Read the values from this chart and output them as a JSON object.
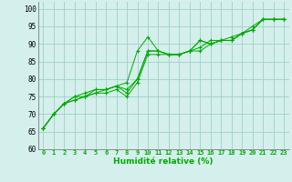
{
  "title": "",
  "xlabel": "Humidité relative (%)",
  "ylabel": "",
  "bg_color": "#d4efec",
  "grid_color": "#a0cfc8",
  "line_color": "#00aa00",
  "marker_color": "#00aa00",
  "xlim": [
    -0.5,
    23.5
  ],
  "ylim": [
    60,
    102
  ],
  "yticks": [
    60,
    65,
    70,
    75,
    80,
    85,
    90,
    95,
    100
  ],
  "xticks": [
    0,
    1,
    2,
    3,
    4,
    5,
    6,
    7,
    8,
    9,
    10,
    11,
    12,
    13,
    14,
    15,
    16,
    17,
    18,
    19,
    20,
    21,
    22,
    23
  ],
  "series": [
    [
      66,
      70,
      73,
      75,
      75,
      77,
      77,
      78,
      79,
      88,
      92,
      88,
      87,
      87,
      88,
      89,
      91,
      91,
      92,
      93,
      95,
      97,
      97,
      97
    ],
    [
      66,
      70,
      73,
      74,
      75,
      76,
      76,
      77,
      75,
      79,
      87,
      87,
      87,
      87,
      88,
      88,
      90,
      91,
      91,
      93,
      94,
      97,
      97,
      97
    ],
    [
      66,
      70,
      73,
      74,
      75,
      76,
      77,
      78,
      76,
      80,
      88,
      88,
      87,
      87,
      88,
      91,
      90,
      91,
      91,
      93,
      94,
      97,
      97,
      97
    ],
    [
      66,
      70,
      73,
      75,
      76,
      77,
      77,
      78,
      77,
      80,
      88,
      88,
      87,
      87,
      88,
      91,
      90,
      91,
      91,
      93,
      94,
      97,
      97,
      97
    ]
  ]
}
